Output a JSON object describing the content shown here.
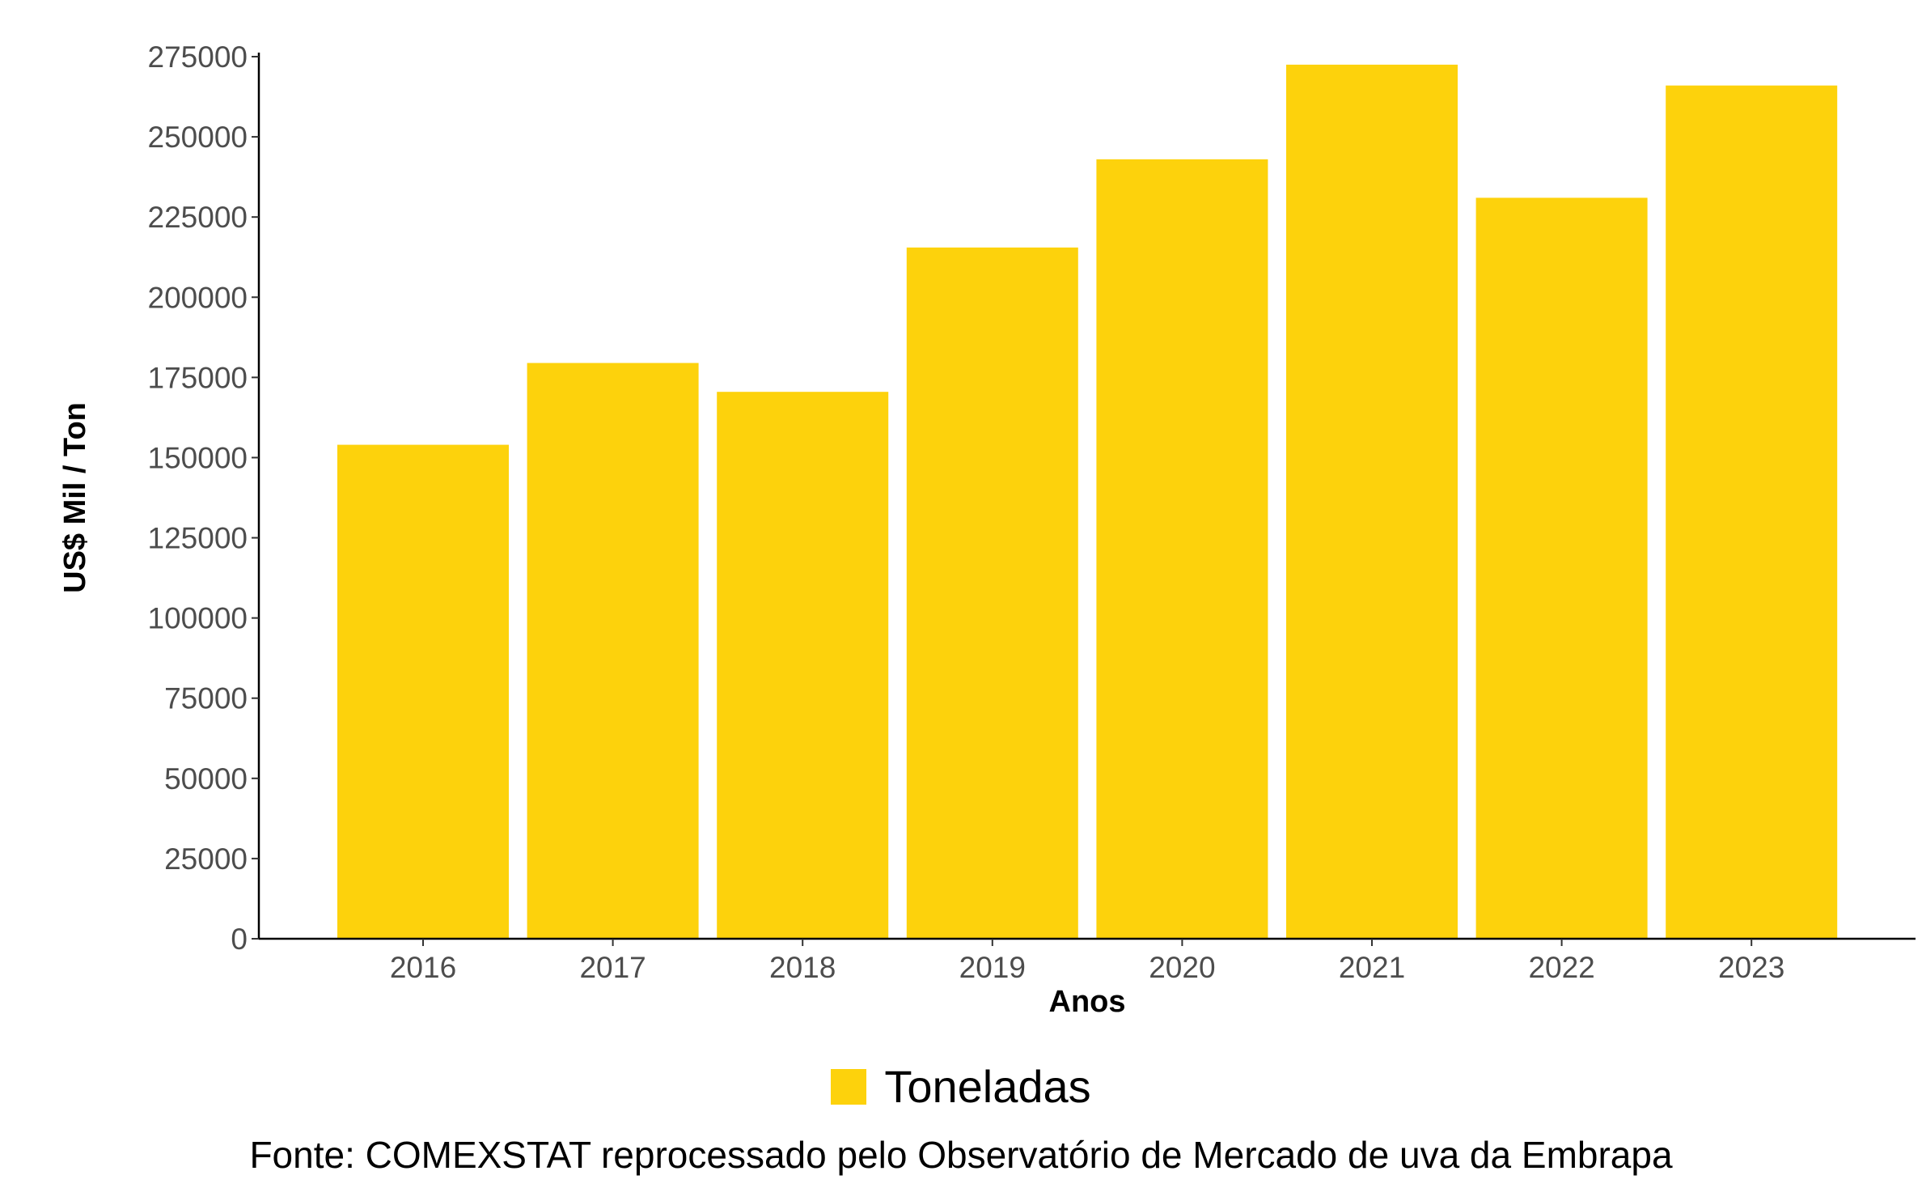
{
  "chart_data": {
    "type": "bar",
    "categories": [
      "2016",
      "2017",
      "2018",
      "2019",
      "2020",
      "2021",
      "2022",
      "2023"
    ],
    "series": [
      {
        "name": "Toneladas",
        "values": [
          154000,
          179500,
          170500,
          215500,
          243000,
          272500,
          231000,
          266000
        ]
      }
    ],
    "xlabel": "Anos",
    "ylabel": "US$ Mil / Ton",
    "ylim": [
      0,
      275000
    ],
    "yticks": [
      0,
      25000,
      50000,
      75000,
      100000,
      125000,
      150000,
      175000,
      200000,
      225000,
      250000,
      275000
    ],
    "ytick_labels": [
      "0",
      "25000",
      "50000",
      "75000",
      "100000",
      "125000",
      "150000",
      "175000",
      "200000",
      "225000",
      "250000",
      "275000"
    ],
    "grid": false,
    "legend_position": "bottom",
    "bar_color": "#FDD20C"
  },
  "caption": "Fonte: COMEXSTAT reprocessado pelo Observatório de Mercado de uva da Embrapa"
}
